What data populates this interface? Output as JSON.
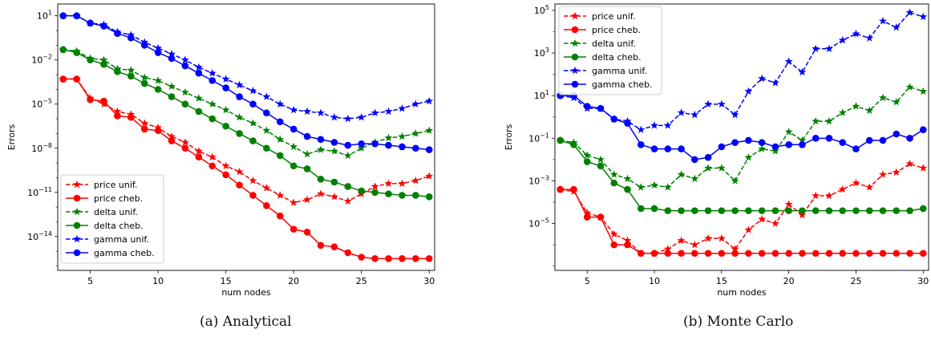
{
  "chart_data": [
    {
      "type": "line",
      "caption": "(a)  Analytical",
      "xlabel": "num nodes",
      "ylabel": "Errors",
      "yscale": "log",
      "xlim": [
        2.6,
        30.4
      ],
      "ylim_exp": [
        -16.3,
        1.8
      ],
      "x_ticks": [
        5,
        10,
        15,
        20,
        25,
        30
      ],
      "y_ticks_exp": [
        1,
        -2,
        -5,
        -8,
        -11,
        -14
      ],
      "legend_position": "lower-left",
      "x": [
        3,
        4,
        5,
        6,
        7,
        8,
        9,
        10,
        11,
        12,
        13,
        14,
        15,
        16,
        17,
        18,
        19,
        20,
        21,
        22,
        23,
        24,
        25,
        26,
        27,
        28,
        29,
        30
      ],
      "series": [
        {
          "name": "price unif.",
          "color": "#ff0000",
          "style": "dashed",
          "marker": "star",
          "log10": [
            -3.3,
            -3.3,
            -4.6,
            -5.0,
            -5.5,
            -5.7,
            -6.3,
            -6.6,
            -7.2,
            -7.6,
            -8.2,
            -8.6,
            -9.2,
            -9.6,
            -10.2,
            -10.7,
            -11.2,
            -11.7,
            -11.5,
            -11.1,
            -11.3,
            -11.6,
            -11.1,
            -10.6,
            -10.4,
            -10.4,
            -10.2,
            -9.9
          ]
        },
        {
          "name": "price cheb.",
          "color": "#ff0000",
          "style": "solid",
          "marker": "circle",
          "log10": [
            -3.3,
            -3.3,
            -4.7,
            -4.8,
            -5.8,
            -5.9,
            -6.7,
            -6.8,
            -7.5,
            -8.0,
            -8.6,
            -9.2,
            -9.8,
            -10.5,
            -11.2,
            -11.9,
            -12.6,
            -13.5,
            -13.7,
            -14.6,
            -14.7,
            -15.1,
            -15.4,
            -15.5,
            -15.5,
            -15.5,
            -15.5,
            -15.5
          ]
        },
        {
          "name": "delta unif.",
          "color": "#008000",
          "style": "dashed",
          "marker": "star",
          "log10": [
            -1.3,
            -1.4,
            -1.9,
            -2.0,
            -2.6,
            -2.7,
            -3.2,
            -3.4,
            -3.8,
            -4.2,
            -4.6,
            -5.0,
            -5.4,
            -5.9,
            -6.3,
            -6.8,
            -7.4,
            -7.9,
            -8.4,
            -8.1,
            -8.2,
            -8.5,
            -8.0,
            -7.6,
            -7.3,
            -7.2,
            -7.0,
            -6.8
          ]
        },
        {
          "name": "delta cheb.",
          "color": "#008000",
          "style": "solid",
          "marker": "circle",
          "log10": [
            -1.3,
            -1.5,
            -2.0,
            -2.3,
            -2.8,
            -3.1,
            -3.6,
            -4.0,
            -4.5,
            -5.0,
            -5.5,
            -6.0,
            -6.5,
            -7.0,
            -7.5,
            -8.0,
            -8.5,
            -9.2,
            -9.4,
            -10.1,
            -10.3,
            -10.6,
            -10.9,
            -11.0,
            -11.1,
            -11.2,
            -11.2,
            -11.3
          ]
        },
        {
          "name": "gamma unif.",
          "color": "#0000ff",
          "style": "dashed",
          "marker": "star",
          "log10": [
            1.0,
            1.0,
            0.5,
            0.4,
            -0.1,
            -0.3,
            -0.8,
            -1.2,
            -1.6,
            -2.0,
            -2.5,
            -2.9,
            -3.3,
            -3.7,
            -4.1,
            -4.5,
            -5.0,
            -5.4,
            -5.5,
            -5.6,
            -5.9,
            -6.0,
            -5.9,
            -5.6,
            -5.5,
            -5.3,
            -5.0,
            -4.8
          ]
        },
        {
          "name": "gamma cheb.",
          "color": "#0000ff",
          "style": "solid",
          "marker": "circle",
          "log10": [
            1.0,
            1.0,
            0.5,
            0.3,
            -0.2,
            -0.5,
            -1.0,
            -1.5,
            -1.9,
            -2.4,
            -2.9,
            -3.4,
            -3.9,
            -4.5,
            -5.0,
            -5.6,
            -6.2,
            -6.7,
            -7.2,
            -7.4,
            -7.6,
            -7.8,
            -7.7,
            -7.7,
            -7.8,
            -7.9,
            -8.0,
            -8.1
          ]
        }
      ]
    },
    {
      "type": "line",
      "caption": "(b)  Monte Carlo",
      "xlabel": "num nodes",
      "ylabel": "Errors",
      "yscale": "log",
      "xlim": [
        2.6,
        30.4
      ],
      "ylim_exp": [
        -7.2,
        5.3
      ],
      "x_ticks": [
        5,
        10,
        15,
        20,
        25,
        30
      ],
      "y_ticks_exp": [
        5,
        3,
        1,
        -1,
        -3,
        -5
      ],
      "legend_position": "upper-left",
      "x": [
        3,
        4,
        5,
        6,
        7,
        8,
        9,
        10,
        11,
        12,
        13,
        14,
        15,
        16,
        17,
        18,
        19,
        20,
        21,
        22,
        23,
        24,
        25,
        26,
        27,
        28,
        29,
        30
      ],
      "series": [
        {
          "name": "price unif.",
          "color": "#ff0000",
          "style": "dashed",
          "marker": "star",
          "log10": [
            -3.4,
            -3.5,
            -4.5,
            -4.7,
            -5.5,
            -5.8,
            -6.4,
            -6.4,
            -6.2,
            -5.8,
            -6.0,
            -5.7,
            -5.7,
            -6.2,
            -5.3,
            -4.8,
            -5.0,
            -4.1,
            -4.6,
            -3.7,
            -3.7,
            -3.4,
            -3.1,
            -3.3,
            -2.7,
            -2.6,
            -2.2,
            -2.4
          ]
        },
        {
          "name": "price cheb.",
          "color": "#ff0000",
          "style": "solid",
          "marker": "circle",
          "log10": [
            -3.4,
            -3.4,
            -4.7,
            -4.7,
            -6.0,
            -6.0,
            -6.4,
            -6.4,
            -6.4,
            -6.4,
            -6.4,
            -6.4,
            -6.4,
            -6.4,
            -6.4,
            -6.4,
            -6.4,
            -6.4,
            -6.4,
            -6.4,
            -6.4,
            -6.4,
            -6.4,
            -6.4,
            -6.4,
            -6.4,
            -6.4,
            -6.4
          ]
        },
        {
          "name": "delta unif.",
          "color": "#008000",
          "style": "dashed",
          "marker": "star",
          "log10": [
            -1.1,
            -1.2,
            -1.8,
            -2.0,
            -2.7,
            -2.9,
            -3.3,
            -3.2,
            -3.3,
            -2.7,
            -2.9,
            -2.4,
            -2.4,
            -3.0,
            -1.9,
            -1.5,
            -1.6,
            -0.7,
            -1.1,
            -0.2,
            -0.2,
            0.2,
            0.5,
            0.3,
            0.9,
            0.7,
            1.4,
            1.2
          ]
        },
        {
          "name": "delta cheb.",
          "color": "#008000",
          "style": "solid",
          "marker": "circle",
          "log10": [
            -1.1,
            -1.3,
            -2.1,
            -2.3,
            -3.1,
            -3.4,
            -4.3,
            -4.3,
            -4.4,
            -4.4,
            -4.4,
            -4.4,
            -4.4,
            -4.4,
            -4.4,
            -4.4,
            -4.4,
            -4.4,
            -4.4,
            -4.4,
            -4.4,
            -4.4,
            -4.4,
            -4.4,
            -4.4,
            -4.4,
            -4.4,
            -4.3
          ]
        },
        {
          "name": "gamma unif.",
          "color": "#0000ff",
          "style": "dashed",
          "marker": "star",
          "log10": [
            1.0,
            0.9,
            0.4,
            0.4,
            -0.1,
            -0.2,
            -0.6,
            -0.4,
            -0.4,
            0.2,
            0.1,
            0.6,
            0.6,
            0.1,
            1.2,
            1.8,
            1.6,
            2.6,
            2.1,
            3.2,
            3.2,
            3.6,
            3.9,
            3.7,
            4.5,
            4.2,
            4.9,
            4.7
          ]
        },
        {
          "name": "gamma cheb.",
          "color": "#0000ff",
          "style": "solid",
          "marker": "circle",
          "log10": [
            1.0,
            1.0,
            0.5,
            0.4,
            -0.1,
            -0.3,
            -1.3,
            -1.5,
            -1.5,
            -1.5,
            -2.0,
            -1.9,
            -1.4,
            -1.2,
            -1.1,
            -1.2,
            -1.4,
            -1.3,
            -1.3,
            -1.0,
            -1.0,
            -1.2,
            -1.5,
            -1.1,
            -1.1,
            -0.8,
            -1.0,
            -0.6
          ]
        }
      ]
    }
  ]
}
